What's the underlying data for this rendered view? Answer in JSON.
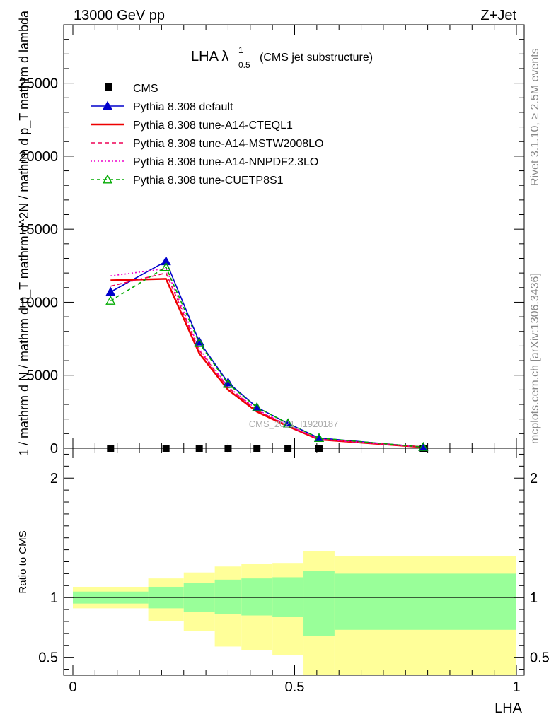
{
  "header": {
    "left": "13000 GeV pp",
    "right": "Z+Jet"
  },
  "side_labels": {
    "top": "Rivet 3.1.10, ≥ 2.5M events",
    "bottom": "mcplots.cern.ch [arXiv:1306.3436]"
  },
  "watermark": "CMS_2021_I1920187",
  "title": {
    "main": "LHA λ",
    "sup": "1",
    "sub": "0.5",
    "note": "(CMS jet substructure)"
  },
  "colors": {
    "data": "#000000",
    "default": "#0000cc",
    "a14cteq": "#ee0000",
    "mstw": "#ee0055",
    "nnpdf": "#ee00cc",
    "cuetp8s1": "#00aa00",
    "band_inner": "#99ff99",
    "band_outer": "#ffff99"
  },
  "chart_data": [
    {
      "type": "line",
      "title": "LHA λ^1_0.5 (CMS jet substructure)",
      "ylabel": "1 / mathrm d N / mathrm d p_T mathrm d^2N / mathrm d p_T mathrm d lambda",
      "xlim": [
        0,
        1
      ],
      "ylim": [
        0,
        29000
      ],
      "yticks": [
        0,
        5000,
        10000,
        15000,
        20000,
        25000
      ],
      "ytick_labels": [
        "0",
        "5000",
        "10000",
        "15000",
        "20000",
        "25000"
      ],
      "x": [
        0.085,
        0.21,
        0.285,
        0.35,
        0.415,
        0.485,
        0.555,
        0.79
      ],
      "series": [
        {
          "name": "CMS",
          "key": "data",
          "marker": "square",
          "values": [
            0,
            0,
            0,
            0,
            0,
            0,
            0,
            0
          ]
        },
        {
          "name": "Pythia 8.308 default",
          "key": "default",
          "dash": "",
          "marker": "tri-filled",
          "values": [
            10700,
            12800,
            7300,
            4500,
            2800,
            1700,
            700,
            80
          ]
        },
        {
          "name": "Pythia 8.308 tune-A14-CTEQL1",
          "key": "a14cteq",
          "dash": "",
          "width": 2.5,
          "values": [
            11500,
            11600,
            6500,
            4000,
            2500,
            1500,
            600,
            70
          ]
        },
        {
          "name": "Pythia 8.308 tune-A14-MSTW2008LO",
          "key": "mstw",
          "dash": "6,4",
          "values": [
            11100,
            12000,
            6700,
            4150,
            2600,
            1550,
            620,
            75
          ]
        },
        {
          "name": "Pythia 8.308 tune-A14-NNPDF2.3LO",
          "key": "nnpdf",
          "dash": "2,3",
          "values": [
            11800,
            12300,
            6800,
            4200,
            2650,
            1580,
            630,
            75
          ]
        },
        {
          "name": "Pythia 8.308 tune-CUETP8S1",
          "key": "cuetp8s1",
          "dash": "5,4",
          "marker": "tri-open",
          "values": [
            10100,
            12400,
            7200,
            4400,
            2800,
            1700,
            700,
            80
          ]
        }
      ]
    },
    {
      "type": "area",
      "ylabel": "Ratio to CMS",
      "xlabel": "LHA",
      "xlim": [
        0,
        1
      ],
      "ylim": [
        0.35,
        2.25
      ],
      "xticks": [
        0,
        0.5,
        1
      ],
      "xtick_labels": [
        "0",
        "0.5",
        "1"
      ],
      "yticks": [
        0.5,
        1,
        2
      ],
      "ytick_labels": [
        "0.5",
        "1",
        "2"
      ],
      "bin_edges": [
        0,
        0.17,
        0.25,
        0.32,
        0.38,
        0.45,
        0.52,
        0.59,
        1.0
      ],
      "inner_band": {
        "lo": [
          0.95,
          0.91,
          0.88,
          0.86,
          0.85,
          0.84,
          0.68,
          0.73
        ],
        "hi": [
          1.05,
          1.09,
          1.12,
          1.15,
          1.16,
          1.17,
          1.22,
          1.2
        ]
      },
      "outer_band": {
        "lo": [
          0.91,
          0.8,
          0.72,
          0.59,
          0.56,
          0.52,
          0.35,
          0.35
        ],
        "hi": [
          1.09,
          1.16,
          1.21,
          1.26,
          1.28,
          1.29,
          1.39,
          1.35
        ]
      }
    }
  ]
}
